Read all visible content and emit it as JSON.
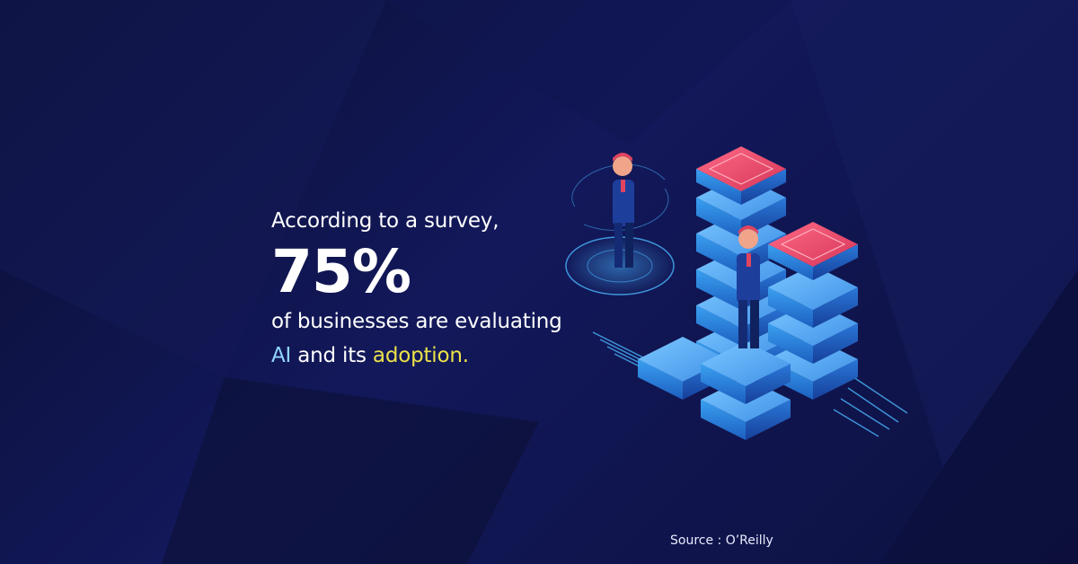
{
  "headline": {
    "intro": "According to a survey,",
    "stat": "75%",
    "line3": "of businesses are evaluating",
    "highlight_ai": "AI",
    "connector": " and its ",
    "highlight_adoption": "adoption."
  },
  "source": "Source : O’Reilly",
  "colors": {
    "background": "#0f1440",
    "ai_highlight": "#8fd6ff",
    "adoption_highlight": "#ece24a",
    "server_top": "#e8456a",
    "server_body": "#2a7fd9"
  },
  "icons": [
    "server-stack-icon",
    "businessman-icon",
    "hologram-platform-icon"
  ]
}
